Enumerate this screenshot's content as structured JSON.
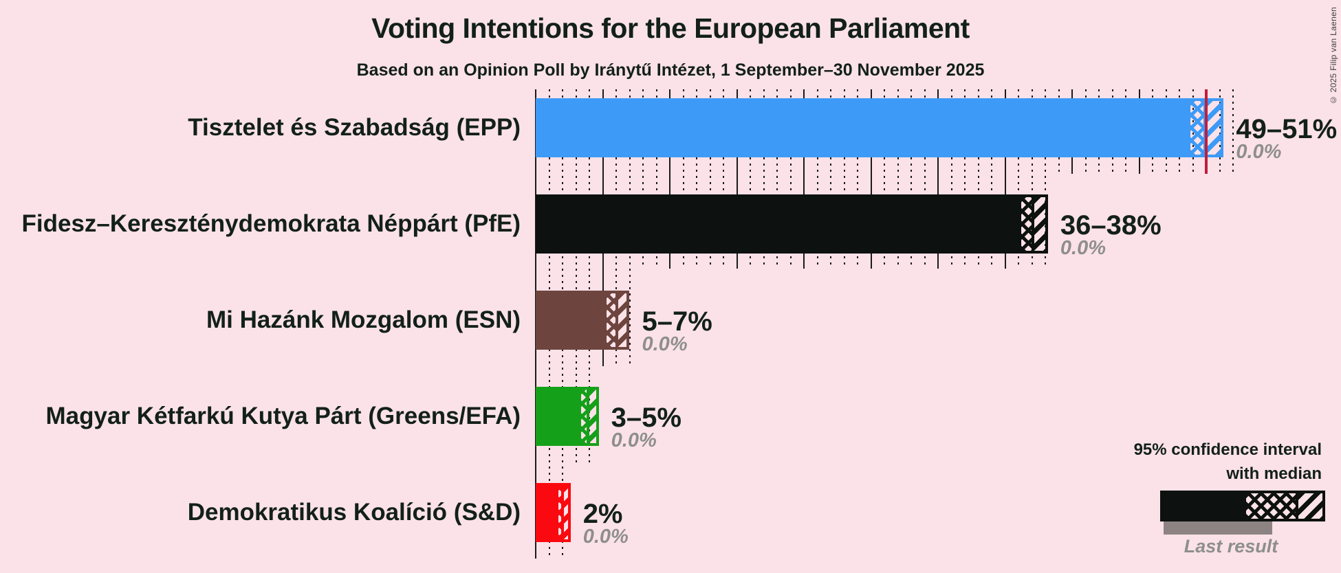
{
  "header": {
    "title": "Voting Intentions for the European Parliament",
    "subtitle": "Based on an Opinion Poll by Iránytű Intézet, 1 September–30 November 2025"
  },
  "copyright": "© 2025 Filip van Laenen",
  "colors": {
    "background": "#FBE2E8",
    "text": "#13201A",
    "muted_text": "#8E8E8E",
    "gridline": "#1A1A1A",
    "majority_line": "#C01D3C",
    "last_result_bar": "#8D8383"
  },
  "chart_data": {
    "type": "bar",
    "orientation": "horizontal",
    "title": "Voting Intentions for the European Parliament",
    "x_axis": {
      "unit": "%",
      "min": 0,
      "max": 52,
      "minor_gridline_step": 1,
      "major_gridline_step": 5,
      "majority_threshold": 50
    },
    "categories": [
      "Tisztelet és Szabadság (EPP)",
      "Fidesz–Kereszténydemokrata Néppárt (PfE)",
      "Mi Hazánk Mozgalom (ESN)",
      "Magyar Kétfarkú Kutya Párt (Greens/EFA)",
      "Demokratikus Koalíció (S&D)"
    ],
    "bars": [
      {
        "party": "Tisztelet és Szabadság (EPP)",
        "ci_label": "49–51%",
        "ci_low": 48.6,
        "ci_median": 49.9,
        "ci_high": 51.3,
        "last_result": 0.0,
        "last_result_label": "0.0%",
        "color": "#3D9AF7"
      },
      {
        "party": "Fidesz–Kereszténydemokrata Néppárt (PfE)",
        "ci_label": "36–38%",
        "ci_low": 36.0,
        "ci_median": 37.1,
        "ci_high": 38.2,
        "last_result": 0.0,
        "last_result_label": "0.0%",
        "color": "#0D110F"
      },
      {
        "party": "Mi Hazánk Mozgalom (ESN)",
        "ci_label": "5–7%",
        "ci_low": 5.1,
        "ci_median": 6.05,
        "ci_high": 7.0,
        "last_result": 0.0,
        "last_result_label": "0.0%",
        "color": "#6E453E"
      },
      {
        "party": "Magyar Kétfarkú Kutya Párt (Greens/EFA)",
        "ci_label": "3–5%",
        "ci_low": 3.2,
        "ci_median": 3.9,
        "ci_high": 4.7,
        "last_result": 0.0,
        "last_result_label": "0.0%",
        "color": "#15A01A"
      },
      {
        "party": "Demokratikus Koalíció (S&D)",
        "ci_label": "2%",
        "ci_low": 1.5,
        "ci_median": 2.0,
        "ci_high": 2.6,
        "last_result": 0.0,
        "last_result_label": "0.0%",
        "color": "#FA0A10"
      }
    ],
    "legend": {
      "ci_line1": "95% confidence interval",
      "ci_line2": "with median",
      "last_result": "Last result"
    }
  }
}
